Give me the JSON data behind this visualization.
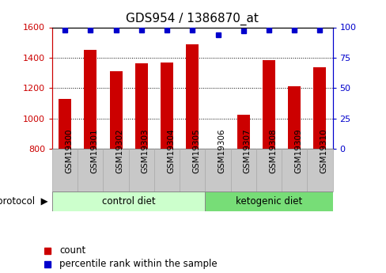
{
  "title": "GDS954 / 1386870_at",
  "samples": [
    "GSM19300",
    "GSM19301",
    "GSM19302",
    "GSM19303",
    "GSM19304",
    "GSM19305",
    "GSM19306",
    "GSM19307",
    "GSM19308",
    "GSM19309",
    "GSM19310"
  ],
  "counts": [
    1130,
    1450,
    1310,
    1365,
    1370,
    1490,
    800,
    1025,
    1385,
    1210,
    1335
  ],
  "percentile_ranks": [
    98,
    98,
    98,
    98,
    98,
    98,
    94,
    97,
    98,
    98,
    98
  ],
  "ylim_left": [
    800,
    1600
  ],
  "ylim_right": [
    0,
    100
  ],
  "yticks_left": [
    800,
    1000,
    1200,
    1400,
    1600
  ],
  "yticks_right": [
    0,
    25,
    50,
    75,
    100
  ],
  "groups": [
    {
      "label": "control diet",
      "start": 0,
      "end": 5,
      "color": "#ccffcc"
    },
    {
      "label": "ketogenic diet",
      "start": 6,
      "end": 10,
      "color": "#77dd77"
    }
  ],
  "group_label": "protocol",
  "bar_color": "#cc0000",
  "dot_color": "#0000cc",
  "bar_width": 0.5,
  "legend_count_label": "count",
  "legend_pct_label": "percentile rank within the sample",
  "left_tick_color": "#cc0000",
  "right_tick_color": "#0000cc",
  "title_fontsize": 11,
  "tick_fontsize": 8,
  "sample_label_fontsize": 7.5,
  "box_facecolor": "#c8c8c8",
  "box_edgecolor": "#aaaaaa"
}
